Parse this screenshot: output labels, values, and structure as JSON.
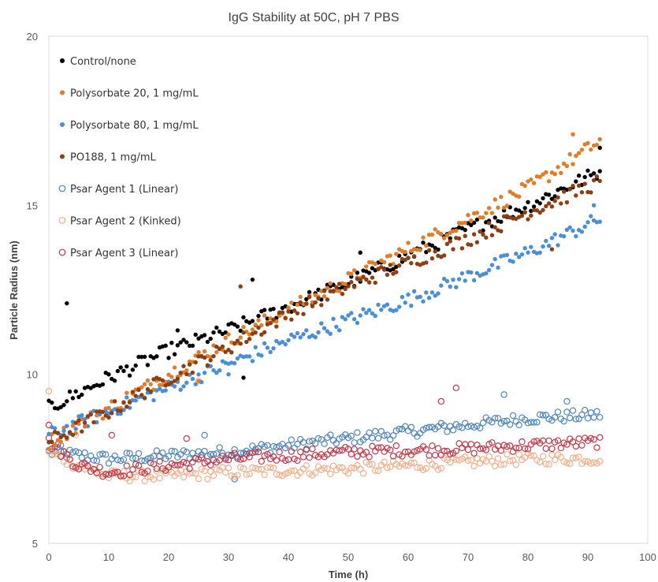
{
  "chart_data": {
    "type": "scatter",
    "title": "IgG Stability at 50C, pH 7 PBS",
    "xlabel": "Time (h)",
    "ylabel": "Particle Radius (nm)",
    "xlim": [
      0,
      100
    ],
    "ylim": [
      5,
      20
    ],
    "x_ticks": [
      0,
      10,
      20,
      30,
      40,
      50,
      60,
      70,
      80,
      90,
      100
    ],
    "y_ticks": [
      5,
      10,
      15,
      20
    ],
    "grid": false,
    "legend_position": "top-left, inside plot area",
    "x_sampling": {
      "start": 0,
      "end": 92,
      "step": 0.5
    },
    "series": [
      {
        "name": "Control/none",
        "marker": "filled",
        "color": "#000000",
        "trend": [
          [
            0,
            9.0
          ],
          [
            10,
            9.9
          ],
          [
            20,
            10.7
          ],
          [
            30,
            11.3
          ],
          [
            40,
            12.0
          ],
          [
            50,
            12.7
          ],
          [
            60,
            13.5
          ],
          [
            70,
            14.3
          ],
          [
            80,
            15.0
          ],
          [
            92,
            16.0
          ]
        ],
        "outliers": [
          [
            3,
            12.1
          ],
          [
            32.5,
            9.9
          ],
          [
            34,
            12.8
          ],
          [
            52,
            13.6
          ],
          [
            21.5,
            11.3
          ],
          [
            92,
            16.7
          ]
        ]
      },
      {
        "name": "Polysorbate 20, 1 mg/mL",
        "marker": "filled",
        "color": "#e07c2a",
        "trend": [
          [
            0,
            8.0
          ],
          [
            10,
            9.0
          ],
          [
            20,
            10.0
          ],
          [
            30,
            11.0
          ],
          [
            40,
            11.9
          ],
          [
            50,
            12.8
          ],
          [
            60,
            13.7
          ],
          [
            70,
            14.6
          ],
          [
            80,
            15.5
          ],
          [
            92,
            16.9
          ]
        ],
        "outliers": [
          [
            25,
            9.8
          ],
          [
            87.5,
            17.1
          ]
        ]
      },
      {
        "name": "Polysorbate 80, 1 mg/mL",
        "marker": "filled",
        "color": "#4a8fd6",
        "trend": [
          [
            0,
            8.2
          ],
          [
            10,
            8.9
          ],
          [
            20,
            9.6
          ],
          [
            30,
            10.3
          ],
          [
            40,
            11.0
          ],
          [
            50,
            11.6
          ],
          [
            60,
            12.2
          ],
          [
            70,
            12.9
          ],
          [
            80,
            13.6
          ],
          [
            92,
            14.6
          ]
        ],
        "outliers": [
          [
            30,
            10.0
          ],
          [
            91,
            15.0
          ]
        ]
      },
      {
        "name": "PO188, 1 mg/mL",
        "marker": "filled",
        "color": "#8b3f12",
        "trend": [
          [
            0,
            8.0
          ],
          [
            10,
            8.9
          ],
          [
            20,
            9.9
          ],
          [
            30,
            10.8
          ],
          [
            40,
            11.8
          ],
          [
            50,
            12.6
          ],
          [
            60,
            13.3
          ],
          [
            70,
            14.0
          ],
          [
            80,
            14.8
          ],
          [
            92,
            15.7
          ]
        ],
        "outliers": [
          [
            32,
            12.6
          ],
          [
            84,
            13.7
          ]
        ]
      },
      {
        "name": "Psar Agent 1 (Linear)",
        "marker": "open",
        "color": "#4f86b8",
        "trend": [
          [
            0,
            7.7
          ],
          [
            10,
            7.5
          ],
          [
            20,
            7.6
          ],
          [
            30,
            7.7
          ],
          [
            40,
            7.9
          ],
          [
            50,
            8.1
          ],
          [
            60,
            8.3
          ],
          [
            70,
            8.5
          ],
          [
            80,
            8.7
          ],
          [
            92,
            8.8
          ]
        ],
        "outliers": [
          [
            26,
            8.2
          ],
          [
            31,
            6.9
          ],
          [
            76,
            9.4
          ],
          [
            86.5,
            9.2
          ],
          [
            2,
            7.9
          ]
        ]
      },
      {
        "name": "Psar Agent 2 (Kinked)",
        "marker": "open",
        "color": "#f0b08a",
        "trend": [
          [
            0,
            7.7
          ],
          [
            5,
            7.3
          ],
          [
            10,
            7.0
          ],
          [
            20,
            7.0
          ],
          [
            30,
            7.1
          ],
          [
            40,
            7.15
          ],
          [
            50,
            7.2
          ],
          [
            60,
            7.3
          ],
          [
            70,
            7.4
          ],
          [
            80,
            7.5
          ],
          [
            92,
            7.5
          ]
        ],
        "outliers": [
          [
            0,
            9.5
          ],
          [
            10,
            8.9
          ],
          [
            25,
            9.8
          ],
          [
            4.5,
            8.2
          ]
        ]
      },
      {
        "name": "Psar Agent 3 (Linear)",
        "marker": "open",
        "color": "#c0394b",
        "trend": [
          [
            0,
            8.0
          ],
          [
            5,
            7.3
          ],
          [
            10,
            7.1
          ],
          [
            20,
            7.3
          ],
          [
            30,
            7.5
          ],
          [
            40,
            7.6
          ],
          [
            50,
            7.7
          ],
          [
            60,
            7.75
          ],
          [
            70,
            7.8
          ],
          [
            80,
            7.9
          ],
          [
            92,
            8.0
          ]
        ],
        "outliers": [
          [
            68,
            9.6
          ],
          [
            65.5,
            9.2
          ],
          [
            10.5,
            8.2
          ],
          [
            23,
            8.1
          ],
          [
            0,
            8.5
          ]
        ]
      }
    ]
  }
}
